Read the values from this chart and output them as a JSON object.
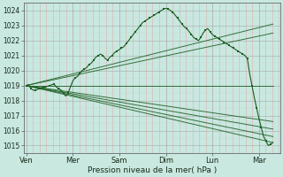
{
  "bg_color": "#c8e8e0",
  "line_color": "#1a5c20",
  "xlabel": "Pression niveau de la mer( hPa )",
  "ylim": [
    1014.5,
    1024.5
  ],
  "yticks": [
    1015,
    1016,
    1017,
    1018,
    1019,
    1020,
    1021,
    1022,
    1023,
    1024
  ],
  "xtick_labels": [
    "Ven",
    "Mer",
    "Sam",
    "Dim",
    "Lun",
    "Mar"
  ],
  "xtick_positions": [
    0,
    1,
    2,
    3,
    4,
    5
  ],
  "fan_lines": [
    {
      "x": [
        0.0,
        5.3
      ],
      "y": [
        1019.0,
        1019.0
      ]
    },
    {
      "x": [
        0.0,
        5.3
      ],
      "y": [
        1019.0,
        1022.5
      ]
    },
    {
      "x": [
        0.0,
        5.3
      ],
      "y": [
        1019.0,
        1023.1
      ]
    },
    {
      "x": [
        0.0,
        5.3
      ],
      "y": [
        1019.0,
        1015.2
      ]
    },
    {
      "x": [
        0.0,
        5.3
      ],
      "y": [
        1019.0,
        1015.6
      ]
    },
    {
      "x": [
        0.0,
        5.3
      ],
      "y": [
        1019.0,
        1016.1
      ]
    },
    {
      "x": [
        0.0,
        5.3
      ],
      "y": [
        1019.0,
        1016.6
      ]
    }
  ],
  "main_line_x": [
    0.0,
    0.05,
    0.1,
    0.15,
    0.2,
    0.25,
    0.3,
    0.35,
    0.4,
    0.5,
    0.6,
    0.65,
    0.7,
    0.75,
    0.8,
    0.85,
    0.9,
    1.0,
    1.05,
    1.1,
    1.15,
    1.2,
    1.25,
    1.3,
    1.35,
    1.4,
    1.45,
    1.5,
    1.55,
    1.6,
    1.65,
    1.7,
    1.75,
    1.8,
    1.85,
    1.9,
    1.95,
    2.0,
    2.05,
    2.1,
    2.15,
    2.2,
    2.25,
    2.3,
    2.35,
    2.4,
    2.45,
    2.5,
    2.55,
    2.6,
    2.65,
    2.7,
    2.75,
    2.8,
    2.85,
    2.9,
    2.95,
    3.0,
    3.05,
    3.1,
    3.15,
    3.2,
    3.25,
    3.3,
    3.35,
    3.4,
    3.45,
    3.5,
    3.55,
    3.6,
    3.65,
    3.7,
    3.75,
    3.8,
    3.85,
    3.9,
    3.95,
    4.0,
    4.05,
    4.1,
    4.15,
    4.2,
    4.25,
    4.3,
    4.35,
    4.4,
    4.45,
    4.5,
    4.55,
    4.6,
    4.65,
    4.7,
    4.75,
    4.8,
    4.85,
    4.9,
    4.95,
    5.0,
    5.05,
    5.1,
    5.15,
    5.2,
    5.25,
    5.3
  ],
  "main_line_y": [
    1019.0,
    1019.05,
    1018.8,
    1018.7,
    1018.7,
    1018.75,
    1018.8,
    1018.9,
    1018.9,
    1019.0,
    1019.1,
    1018.9,
    1018.8,
    1018.7,
    1018.5,
    1018.3,
    1018.5,
    1019.3,
    1019.5,
    1019.6,
    1019.8,
    1020.0,
    1020.1,
    1020.2,
    1020.4,
    1020.5,
    1020.7,
    1020.9,
    1021.0,
    1021.1,
    1021.0,
    1020.8,
    1020.7,
    1020.9,
    1021.0,
    1021.2,
    1021.3,
    1021.4,
    1021.5,
    1021.6,
    1021.8,
    1022.0,
    1022.2,
    1022.4,
    1022.6,
    1022.8,
    1023.0,
    1023.2,
    1023.3,
    1023.4,
    1023.5,
    1023.6,
    1023.7,
    1023.8,
    1023.9,
    1024.0,
    1024.1,
    1024.15,
    1024.1,
    1024.0,
    1023.9,
    1023.7,
    1023.5,
    1023.3,
    1023.1,
    1022.9,
    1022.8,
    1022.6,
    1022.4,
    1022.2,
    1022.1,
    1022.0,
    1022.2,
    1022.5,
    1022.7,
    1022.8,
    1022.6,
    1022.4,
    1022.3,
    1022.2,
    1022.1,
    1022.0,
    1021.9,
    1021.8,
    1021.7,
    1021.6,
    1021.5,
    1021.4,
    1021.3,
    1021.2,
    1021.1,
    1021.0,
    1020.8,
    1019.8,
    1019.0,
    1018.2,
    1017.5,
    1016.8,
    1016.2,
    1015.6,
    1015.3,
    1015.0,
    1015.1,
    1015.2
  ]
}
